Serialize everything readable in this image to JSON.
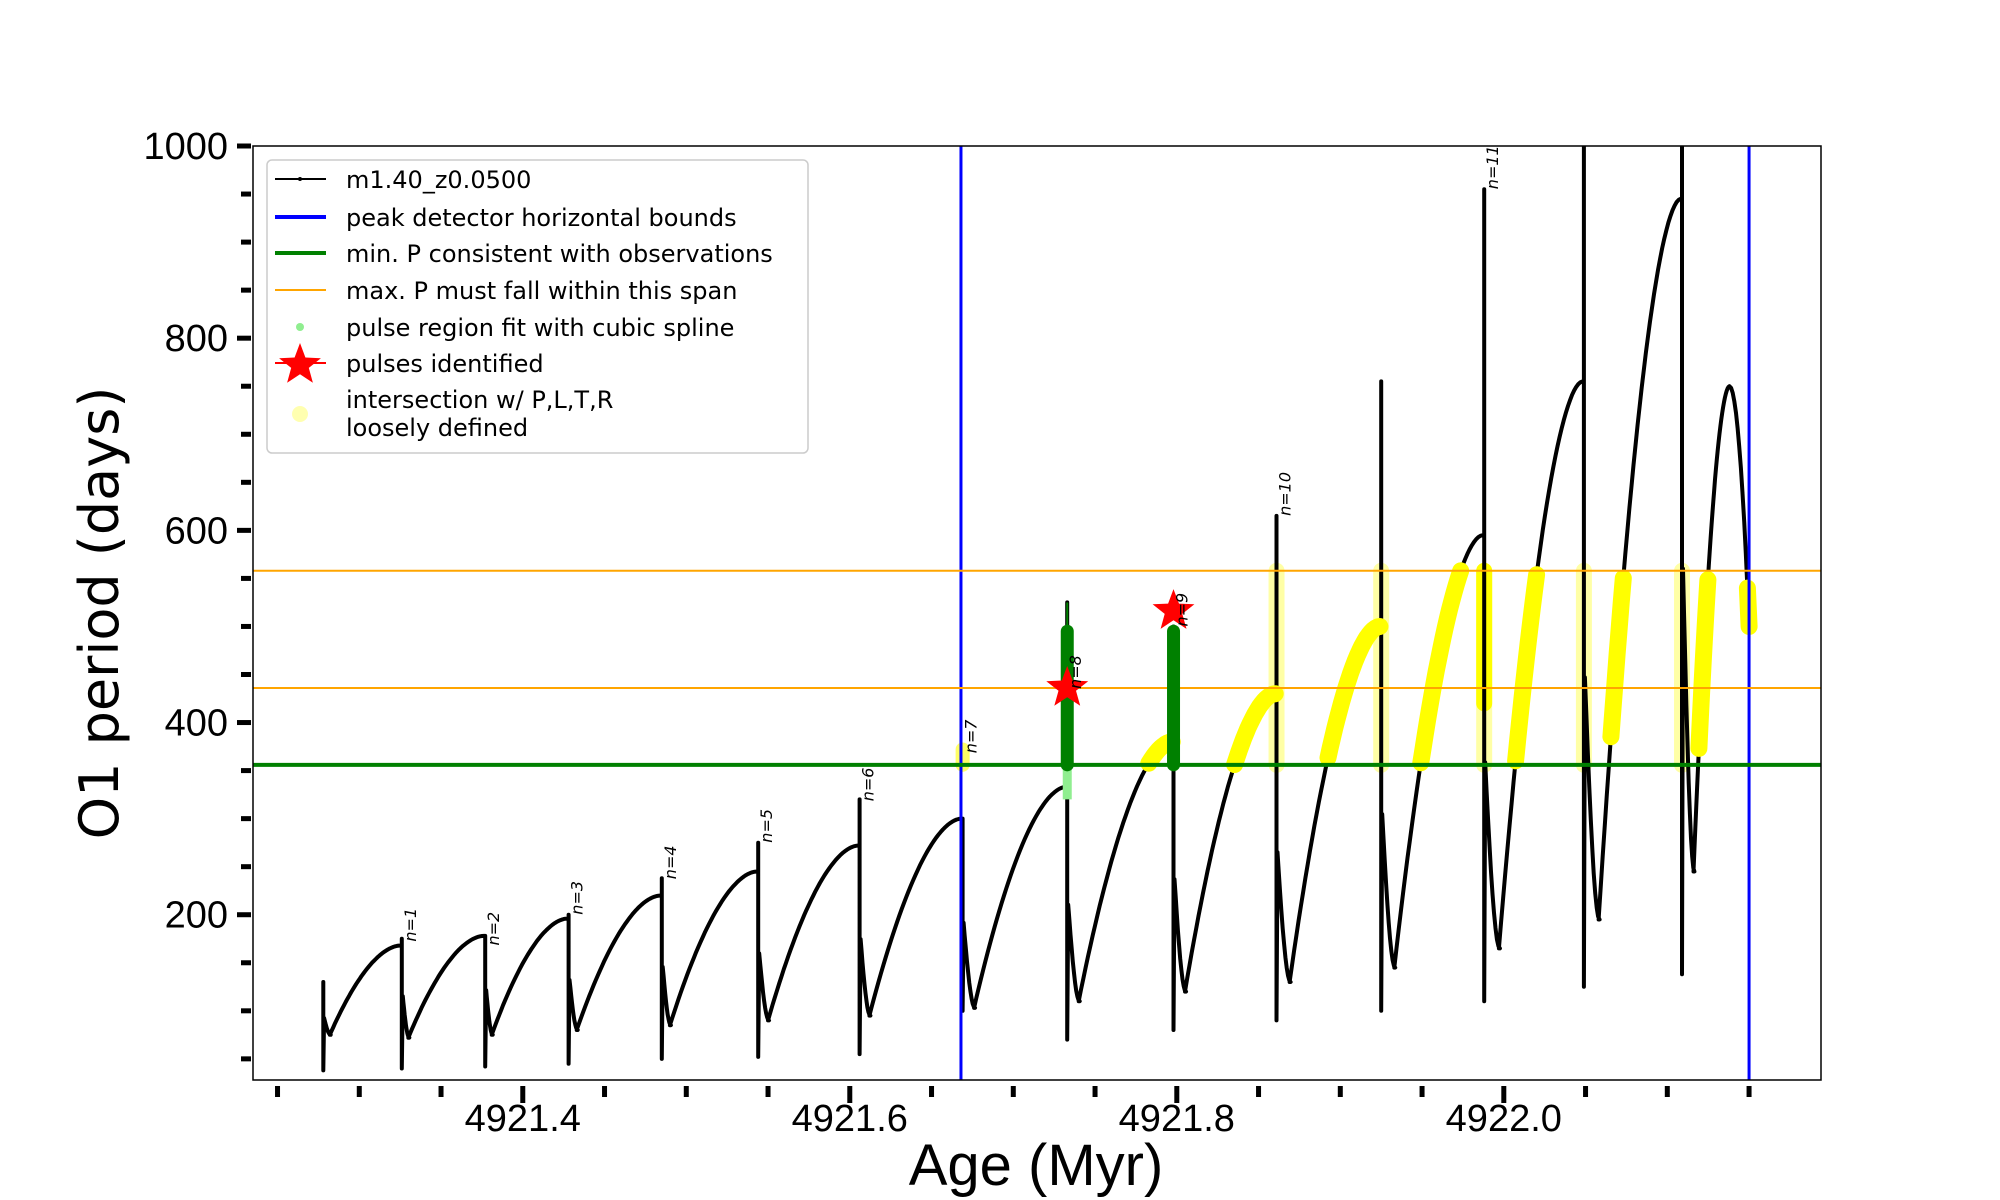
{
  "chart_data": {
    "type": "line",
    "xlabel": "Age (Myr)",
    "ylabel": "O1 period (days)",
    "xlim": [
      4921.235,
      4922.194
    ],
    "ylim": [
      28,
      1000
    ],
    "x_major_ticks": [
      4921.4,
      4921.6,
      4921.8,
      4922.0
    ],
    "x_tick_labels": [
      "4921.4",
      "4921.6",
      "4921.8",
      "4922.0"
    ],
    "x_minor_step": 0.05,
    "x_tick_start": 4921.25,
    "x_tick_end": 4922.15,
    "y_major_ticks": [
      200,
      400,
      600,
      800,
      1000
    ],
    "y_tick_labels": [
      "200",
      "400",
      "600",
      "800",
      "1000"
    ],
    "y_minor_step": 50,
    "grid": false,
    "legend_position": "top-left",
    "legend": [
      {
        "label": "m1.40_z0.0500",
        "type": "line-marker",
        "color": "#000000"
      },
      {
        "label": "peak detector horizontal bounds",
        "type": "line",
        "color": "#0000ff"
      },
      {
        "label": "min. P consistent with observations",
        "type": "line",
        "color": "#008000"
      },
      {
        "label": "max. P must fall within this span",
        "type": "thin-line",
        "color": "#ffa500"
      },
      {
        "label": "pulse region fit with cubic spline",
        "type": "dot",
        "color": "#90ee90"
      },
      {
        "label": "pulses identified",
        "type": "star",
        "color": "#ff0000"
      },
      {
        "label": "intersection w/ P,L,T,R",
        "label2": "loosely defined",
        "type": "big-dot",
        "color": "#ffffb0"
      }
    ],
    "series_name": "m1.40_z0.0500",
    "start": {
      "age": 4921.278,
      "value": 110,
      "spike_top": 130,
      "spike_bottom": 38,
      "min": 75,
      "min_dt": 0.004
    },
    "pulses": [
      {
        "age": 4921.326,
        "peak": 168,
        "spike_top": 175,
        "spike_bottom": 40,
        "min": 72,
        "min_dt": 0.004
      },
      {
        "age": 4921.377,
        "peak": 178,
        "spike_top": 178,
        "spike_bottom": 42,
        "min": 75,
        "min_dt": 0.004
      },
      {
        "age": 4921.428,
        "peak": 196,
        "spike_top": 200,
        "spike_bottom": 45,
        "min": 80,
        "min_dt": 0.005
      },
      {
        "age": 4921.485,
        "peak": 220,
        "spike_top": 238,
        "spike_bottom": 50,
        "min": 85,
        "min_dt": 0.005
      },
      {
        "age": 4921.544,
        "peak": 245,
        "spike_top": 275,
        "spike_bottom": 52,
        "min": 90,
        "min_dt": 0.006
      },
      {
        "age": 4921.606,
        "peak": 272,
        "spike_top": 320,
        "spike_bottom": 55,
        "min": 95,
        "min_dt": 0.006
      },
      {
        "age": 4921.669,
        "peak": 300,
        "spike_top": 300,
        "spike_bottom": 100,
        "min": 103,
        "min_dt": 0.007
      },
      {
        "age": 4921.733,
        "peak": 333,
        "spike_top": 525,
        "spike_bottom": 70,
        "min": 110,
        "min_dt": 0.007
      },
      {
        "age": 4921.798,
        "peak": 380,
        "spike_top": 500,
        "spike_bottom": 80,
        "min": 120,
        "min_dt": 0.007
      },
      {
        "age": 4921.861,
        "peak": 430,
        "spike_top": 615,
        "spike_bottom": 90,
        "min": 130,
        "min_dt": 0.008
      },
      {
        "age": 4921.925,
        "peak": 500,
        "spike_top": 755,
        "spike_bottom": 100,
        "min": 145,
        "min_dt": 0.008
      },
      {
        "age": 4921.988,
        "peak": 595,
        "spike_top": 955,
        "spike_bottom": 110,
        "min": 165,
        "min_dt": 0.009
      },
      {
        "age": 4922.049,
        "peak": 755,
        "spike_top": 1000,
        "spike_bottom": 125,
        "min": 195,
        "min_dt": 0.009
      },
      {
        "age": 4922.109,
        "peak": 945,
        "spike_top": 1000,
        "spike_bottom": 138,
        "min": 245,
        "min_dt": 0.007
      }
    ],
    "end": {
      "peak_age": 4922.138,
      "peak": 750,
      "final_age": 4922.15,
      "final": 500
    },
    "pulse_labels": [
      {
        "text": "n=1",
        "age": 4921.326,
        "y": 172
      },
      {
        "text": "n=2",
        "age": 4921.377,
        "y": 168
      },
      {
        "text": "n=3",
        "age": 4921.428,
        "y": 200
      },
      {
        "text": "n=4",
        "age": 4921.485,
        "y": 237
      },
      {
        "text": "n=5",
        "age": 4921.544,
        "y": 275
      },
      {
        "text": "n=6",
        "age": 4921.606,
        "y": 318
      },
      {
        "text": "n=7",
        "age": 4921.669,
        "y": 368
      },
      {
        "text": "n=8",
        "age": 4921.733,
        "y": 435
      },
      {
        "text": "n=9",
        "age": 4921.798,
        "y": 500
      },
      {
        "text": "n=10",
        "age": 4921.861,
        "y": 615
      },
      {
        "text": "n=11",
        "age": 4921.988,
        "y": 955
      }
    ],
    "vertical_bounds": [
      4921.668,
      4922.15
    ],
    "min_period": 356,
    "max_period_span": [
      436,
      558
    ],
    "spline_regions": [
      {
        "age": 4921.733,
        "from": 356,
        "to": 495,
        "thin_top": 525,
        "light_from": 320
      },
      {
        "age": 4921.798,
        "from": 356,
        "to": 495
      }
    ],
    "pulses_identified": [
      {
        "age": 4921.733,
        "value": 436
      },
      {
        "age": 4921.798,
        "value": 516
      }
    ],
    "colors": {
      "curve": "#000000",
      "bounds": "#0000ff",
      "min_p": "#008000",
      "max_span": "#ffa500",
      "spline": "#008000",
      "spline_light": "#90ee90",
      "star": "#ff0000",
      "intersection": "#ffff00"
    }
  }
}
